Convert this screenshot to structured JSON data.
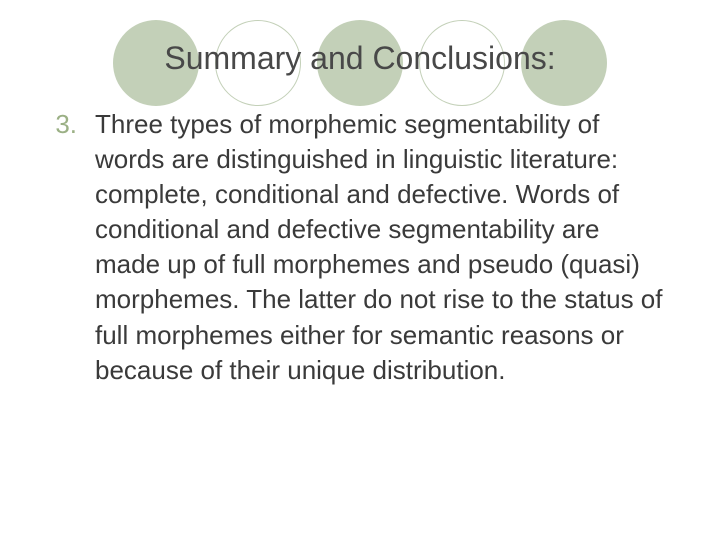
{
  "title": "Summary and Conclusions:",
  "title_fontsize": 32,
  "title_color": "#484848",
  "body_fontsize": 26,
  "body_color": "#3a3a3a",
  "bullet_color": "#9bb085",
  "bullet_number": "3.",
  "body_text": "Three types of morphemic segmentability of words are distinguished in linguistic literature: complete, conditional and defective. Words of conditional and defective segmentability are made up of full morphemes and pseudo (quasi) morphemes. The latter do not rise to the status of full morphemes either for semantic reasons or because of their unique distribution.",
  "background_color": "#ffffff",
  "circles": {
    "count": 5,
    "diameter": 86,
    "gap": 16,
    "filled_color": "#c3d0b8",
    "hollow_border": "#c3d0b8",
    "pattern": [
      "filled",
      "hollow",
      "filled",
      "hollow",
      "filled"
    ]
  }
}
